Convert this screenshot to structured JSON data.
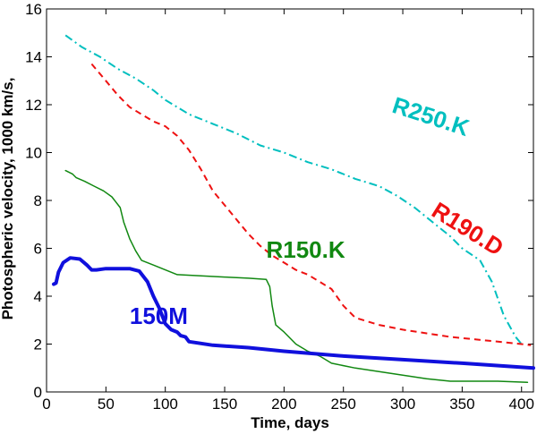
{
  "chart_data": {
    "type": "line",
    "title": "",
    "xlabel": "Time, days",
    "ylabel": "Photospheric velocity, 1000 km/s,",
    "xlim": [
      0,
      410
    ],
    "ylim": [
      0,
      16
    ],
    "xticks": [
      0,
      50,
      100,
      150,
      200,
      250,
      300,
      350,
      400
    ],
    "yticks": [
      0,
      2,
      4,
      6,
      8,
      10,
      12,
      14,
      16
    ],
    "grid": false,
    "series": [
      {
        "name": "R250.K",
        "color": "#00bfbf",
        "style": "dashdot",
        "width": 2,
        "x": [
          16,
          30,
          45,
          60,
          75,
          90,
          100,
          110,
          120,
          140,
          160,
          180,
          200,
          220,
          240,
          260,
          280,
          295,
          310,
          325,
          340,
          350,
          365,
          375,
          385,
          395,
          400
        ],
        "y": [
          14.9,
          14.4,
          14.0,
          13.5,
          13.1,
          12.6,
          12.2,
          11.9,
          11.6,
          11.2,
          10.8,
          10.3,
          10.0,
          9.6,
          9.3,
          8.9,
          8.6,
          8.2,
          7.7,
          7.1,
          6.5,
          6.0,
          5.5,
          4.6,
          3.2,
          2.3,
          2.0
        ]
      },
      {
        "name": "R190.D",
        "color": "#ee1111",
        "style": "dashed",
        "width": 2,
        "x": [
          38,
          50,
          60,
          70,
          80,
          90,
          100,
          110,
          120,
          130,
          140,
          150,
          160,
          170,
          180,
          190,
          200,
          210,
          220,
          230,
          240,
          250,
          260,
          280,
          300,
          320,
          340,
          360,
          380,
          400,
          408
        ],
        "y": [
          13.7,
          13.0,
          12.4,
          11.9,
          11.6,
          11.3,
          11.1,
          10.7,
          10.1,
          9.3,
          8.4,
          7.8,
          7.2,
          6.6,
          6.1,
          5.7,
          5.4,
          5.1,
          4.9,
          4.6,
          4.3,
          3.6,
          3.1,
          2.8,
          2.6,
          2.45,
          2.3,
          2.2,
          2.1,
          2.0,
          1.95
        ]
      },
      {
        "name": "R150.K",
        "color": "#118811",
        "style": "solid",
        "width": 1.5,
        "x": [
          16,
          22,
          25,
          32,
          40,
          48,
          55,
          62,
          65,
          70,
          75,
          80,
          90,
          100,
          110,
          130,
          150,
          170,
          185,
          188,
          190,
          193,
          200,
          210,
          220,
          230,
          240,
          260,
          280,
          300,
          320,
          340,
          360,
          380,
          405
        ],
        "y": [
          9.25,
          9.1,
          8.95,
          8.8,
          8.6,
          8.4,
          8.15,
          7.7,
          7.1,
          6.4,
          5.9,
          5.5,
          5.3,
          5.1,
          4.9,
          4.85,
          4.8,
          4.75,
          4.7,
          4.4,
          3.6,
          2.8,
          2.5,
          2.0,
          1.7,
          1.5,
          1.2,
          1.0,
          0.85,
          0.7,
          0.55,
          0.45,
          0.45,
          0.45,
          0.4
        ]
      },
      {
        "name": "150M",
        "color": "#1010dd",
        "style": "solid",
        "width": 4,
        "x": [
          6,
          8,
          10,
          14,
          20,
          28,
          34,
          38,
          42,
          50,
          60,
          70,
          78,
          85,
          90,
          95,
          100,
          105,
          110,
          113,
          117,
          120,
          140,
          170,
          200,
          250,
          300,
          350,
          410
        ],
        "y": [
          4.5,
          4.55,
          5.0,
          5.4,
          5.6,
          5.55,
          5.3,
          5.1,
          5.1,
          5.15,
          5.15,
          5.15,
          5.05,
          4.6,
          4.0,
          3.5,
          2.85,
          2.6,
          2.5,
          2.35,
          2.3,
          2.1,
          1.95,
          1.85,
          1.7,
          1.5,
          1.35,
          1.2,
          1.0
        ]
      }
    ],
    "annotations": [
      {
        "text": "R250.K",
        "color": "#00bfbf",
        "x": 290,
        "y": 11.7,
        "rotate": 18
      },
      {
        "text": "R190.D",
        "color": "#ee1111",
        "x": 323,
        "y": 7.4,
        "rotate": 32
      },
      {
        "text": "R150.K",
        "color": "#118811",
        "x": 185,
        "y": 5.6,
        "rotate": 0
      },
      {
        "text": "150M",
        "color": "#1010dd",
        "x": 70,
        "y": 2.85,
        "rotate": 0
      }
    ]
  }
}
